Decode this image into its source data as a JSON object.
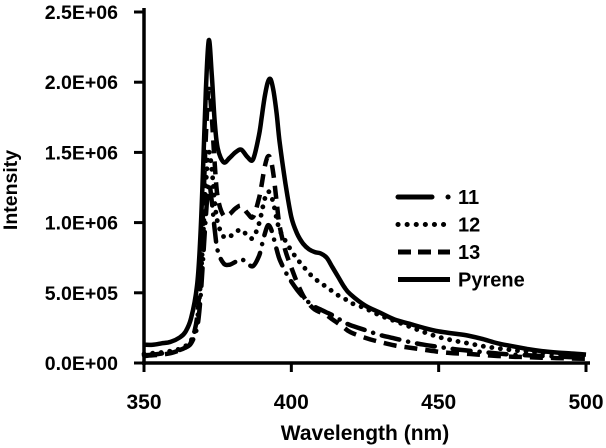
{
  "figure": {
    "background": "#ffffff",
    "foreground": "#000000"
  },
  "chart_data": {
    "type": "line",
    "title": "",
    "xlabel": "Wavelength (nm)",
    "ylabel": "Intensity",
    "xlim": [
      350,
      500
    ],
    "ylim": [
      0,
      2500000
    ],
    "grid": false,
    "x_ticks": [
      {
        "value": 350,
        "label": "350"
      },
      {
        "value": 400,
        "label": "400"
      },
      {
        "value": 450,
        "label": "450"
      },
      {
        "value": 500,
        "label": "500"
      }
    ],
    "y_ticks": [
      {
        "value": 0,
        "label": "0.0E+00"
      },
      {
        "value": 500000,
        "label": "5.0E+05"
      },
      {
        "value": 1000000,
        "label": "1.0E+06"
      },
      {
        "value": 1500000,
        "label": "1.5E+06"
      },
      {
        "value": 2000000,
        "label": "2.0E+06"
      },
      {
        "value": 2500000,
        "label": "2.5E+06"
      }
    ],
    "legend": {
      "position": "right-middle",
      "entries": [
        "11",
        "12",
        "13",
        "Pyrene"
      ]
    },
    "x": [
      350,
      353,
      356,
      359,
      362,
      364,
      366,
      368,
      369,
      370,
      371,
      372,
      373,
      374,
      375,
      377,
      379,
      381,
      383,
      385,
      387,
      389,
      390,
      391,
      392,
      393,
      394,
      395,
      396,
      398,
      400,
      402,
      404,
      406,
      408,
      410,
      412,
      414,
      416,
      418,
      420,
      425,
      430,
      435,
      440,
      445,
      450,
      455,
      460,
      465,
      470,
      475,
      480,
      485,
      490,
      495,
      500
    ],
    "series": [
      {
        "name": "11",
        "line_style": "dash-dot",
        "y": [
          55000,
          60000,
          68000,
          78000,
          92000,
          110000,
          140000,
          250000,
          420000,
          720000,
          1050000,
          1280000,
          1150000,
          950000,
          800000,
          710000,
          700000,
          720000,
          740000,
          710000,
          690000,
          760000,
          840000,
          920000,
          980000,
          960000,
          890000,
          810000,
          740000,
          650000,
          580000,
          520000,
          470000,
          430000,
          400000,
          380000,
          360000,
          340000,
          315000,
          290000,
          270000,
          235000,
          200000,
          175000,
          150000,
          130000,
          115000,
          100000,
          88000,
          78000,
          68000,
          60000,
          55000,
          50000,
          46000,
          42000,
          40000
        ]
      },
      {
        "name": "12",
        "line_style": "dotted",
        "y": [
          65000,
          70000,
          75000,
          85000,
          100000,
          120000,
          160000,
          300000,
          520000,
          880000,
          1280000,
          1500000,
          1380000,
          1150000,
          1000000,
          900000,
          900000,
          930000,
          950000,
          910000,
          890000,
          990000,
          1080000,
          1170000,
          1220000,
          1200000,
          1130000,
          1030000,
          950000,
          870000,
          800000,
          740000,
          690000,
          640000,
          600000,
          570000,
          540000,
          510000,
          480000,
          460000,
          430000,
          390000,
          340000,
          300000,
          260000,
          220000,
          185000,
          160000,
          140000,
          120000,
          105000,
          92000,
          82000,
          73000,
          66000,
          60000,
          55000
        ]
      },
      {
        "name": "13",
        "line_style": "dashed",
        "y": [
          50000,
          55000,
          60000,
          70000,
          90000,
          110000,
          150000,
          320000,
          600000,
          1050000,
          1620000,
          1950000,
          1750000,
          1420000,
          1180000,
          1050000,
          1060000,
          1100000,
          1120000,
          1070000,
          1040000,
          1170000,
          1280000,
          1400000,
          1470000,
          1450000,
          1330000,
          1150000,
          980000,
          800000,
          680000,
          570000,
          480000,
          420000,
          380000,
          360000,
          340000,
          310000,
          280000,
          250000,
          220000,
          180000,
          150000,
          125000,
          110000,
          95000,
          80000,
          70000,
          65000,
          57000,
          50000,
          45000,
          42000,
          38000,
          35000,
          32000,
          30000
        ]
      },
      {
        "name": "Pyrene",
        "line_style": "solid",
        "y": [
          130000,
          130000,
          140000,
          150000,
          180000,
          220000,
          320000,
          550000,
          850000,
          1350000,
          1950000,
          2300000,
          2050000,
          1720000,
          1530000,
          1430000,
          1460000,
          1500000,
          1520000,
          1470000,
          1450000,
          1620000,
          1760000,
          1900000,
          2000000,
          2020000,
          1930000,
          1780000,
          1580000,
          1280000,
          1040000,
          920000,
          850000,
          810000,
          790000,
          780000,
          750000,
          680000,
          610000,
          540000,
          490000,
          410000,
          360000,
          310000,
          280000,
          250000,
          225000,
          210000,
          195000,
          170000,
          140000,
          120000,
          100000,
          85000,
          75000,
          68000,
          60000
        ]
      }
    ]
  }
}
